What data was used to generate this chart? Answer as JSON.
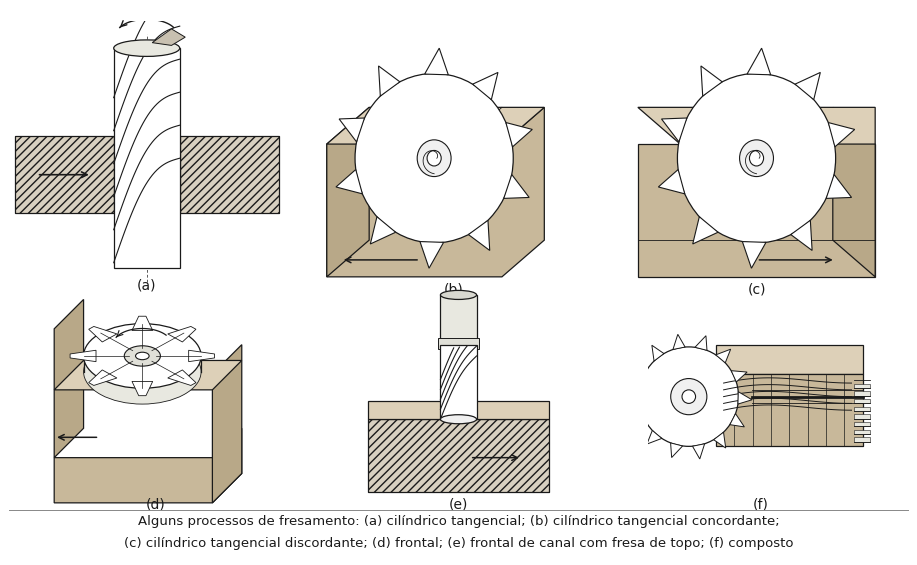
{
  "caption_line1": "Alguns processos de fresamento: (a) cilíndrico tangencial; (b) cilíndrico tangencial concordante;",
  "caption_line2": "(c) cilíndrico tangencial discordante; (d) frontal; (e) frontal de canal com fresa de topo; (f) composto",
  "labels": [
    "(a)",
    "(b)",
    "(c)",
    "(d)",
    "(e)",
    "(f)"
  ],
  "bg_color": "#ffffff",
  "tan_color": "#c8b89a",
  "tan_light": "#ddd0b8",
  "tan_dark": "#b8a888",
  "line_color": "#1a1a1a",
  "hatch_color": "#888888",
  "caption_fontsize": 9.5,
  "label_fontsize": 10
}
